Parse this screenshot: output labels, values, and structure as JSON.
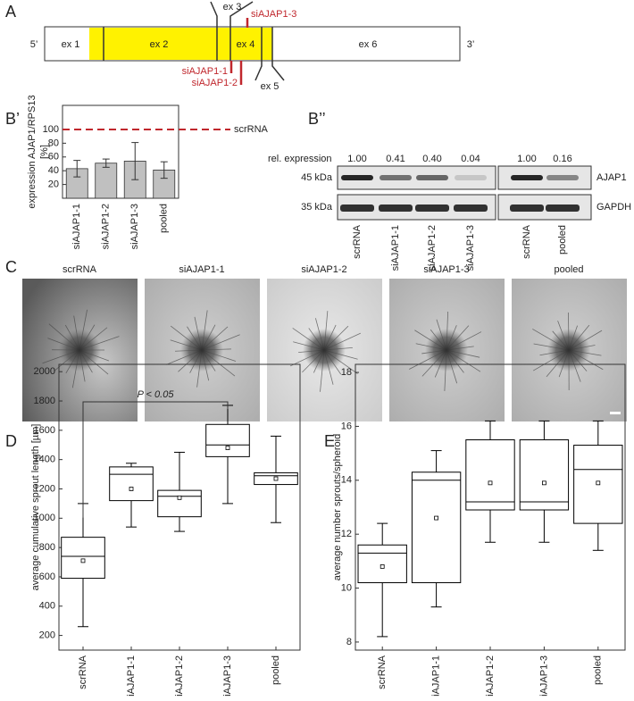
{
  "panel_labels": {
    "a": "A",
    "b1": "B’",
    "b2": "B’’",
    "c": "C",
    "d": "D",
    "e": "E"
  },
  "gene_diagram": {
    "five_prime": "5’",
    "three_prime": "3’",
    "exons": [
      "ex 1",
      "ex 2",
      "ex 3",
      "ex 4",
      "ex 5",
      "ex 6"
    ],
    "sirnas": [
      "siAJAP1-1",
      "siAJAP1-2",
      "siAJAP1-3"
    ]
  },
  "western_blot": {
    "rel_expression_label": "rel. expression",
    "rel_expression": [
      "1.00",
      "0.41",
      "0.40",
      "0.04",
      "1.00",
      "0.16"
    ],
    "markers": [
      "45 kDa",
      "35 kDa"
    ],
    "proteins": [
      "AJAP1",
      "GAPDH"
    ],
    "lanes": [
      "scrRNA",
      "siAJAP1-1",
      "siAJAP1-2",
      "siAJAP1-3",
      "scrRNA",
      "pooled"
    ]
  },
  "images": {
    "labels": [
      "scrRNA",
      "siAJAP1-1",
      "siAJAP1-2",
      "siAJAP1-3",
      "pooled"
    ]
  },
  "chart_data": [
    {
      "type": "bar",
      "ylabel": [
        "expression AJAP1/RPS13",
        "[%]"
      ],
      "categories": [
        "siAJAP1-1",
        "siAJAP1-2",
        "siAJAP1-3",
        "pooled"
      ],
      "values": [
        43,
        51,
        54,
        41
      ],
      "errors": [
        12,
        6,
        27,
        12
      ],
      "color": "#c0c0c0",
      "ylim": [
        0,
        135
      ],
      "yticks": [
        20,
        40,
        60,
        80,
        100
      ],
      "reference_line": {
        "value": 100,
        "label": "scrRNA",
        "color": "#c0272d"
      }
    },
    {
      "type": "box",
      "ylabel": "average cumulative sprout length [µm]",
      "categories": [
        "scrRNA",
        "siAJAP1-1",
        "siAJAP1-2",
        "siAJAP1-3",
        "pooled"
      ],
      "min": [
        260,
        940,
        910,
        1100,
        970
      ],
      "q1": [
        590,
        1120,
        1010,
        1420,
        1230
      ],
      "median": [
        740,
        1300,
        1150,
        1500,
        1290
      ],
      "q3": [
        870,
        1350,
        1190,
        1640,
        1310
      ],
      "max": [
        1100,
        1375,
        1450,
        1770,
        1560
      ],
      "mean": [
        710,
        1200,
        1140,
        1480,
        1270
      ],
      "color": "#000000",
      "ylim": [
        100,
        2050
      ],
      "yticks": [
        200,
        400,
        600,
        800,
        1000,
        1200,
        1400,
        1600,
        1800,
        2000
      ],
      "annotation": "P < 0.05"
    },
    {
      "type": "box",
      "ylabel": "average number sprouts/spheroid",
      "categories": [
        "scrRNA",
        "siAJAP1-1",
        "siAJAP1-2",
        "siAJAP1-3",
        "pooled"
      ],
      "min": [
        8.2,
        9.3,
        11.7,
        11.7,
        11.4
      ],
      "q1": [
        10.2,
        10.2,
        12.9,
        12.9,
        12.4
      ],
      "median": [
        11.3,
        14.0,
        13.2,
        13.2,
        14.4
      ],
      "q3": [
        11.6,
        14.3,
        15.5,
        15.5,
        15.3
      ],
      "max": [
        12.4,
        15.1,
        16.2,
        16.2,
        16.2
      ],
      "mean": [
        10.8,
        12.6,
        13.9,
        13.9,
        13.9
      ],
      "color": "#000000",
      "ylim": [
        7.7,
        18.3
      ],
      "yticks": [
        8,
        10,
        12,
        14,
        16,
        18
      ]
    }
  ]
}
